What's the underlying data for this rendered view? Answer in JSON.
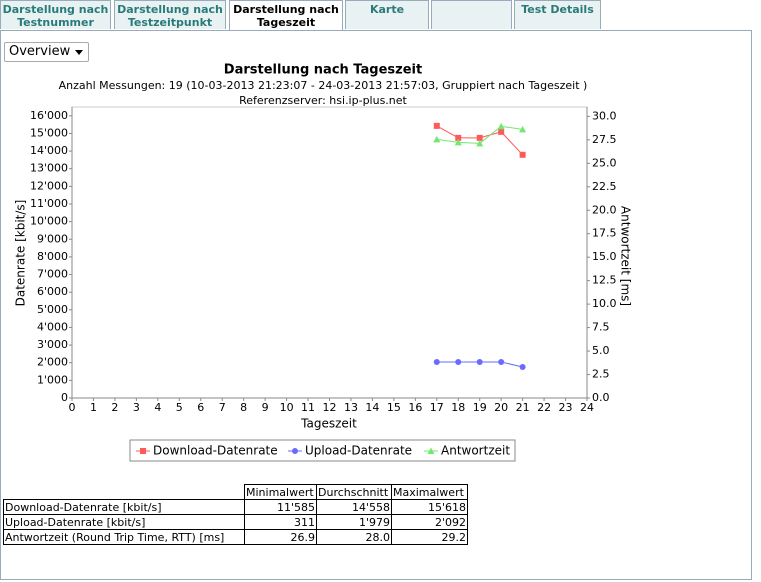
{
  "tabs": [
    [
      "Darstellung nach",
      "Testnummer"
    ],
    [
      "Darstellung nach",
      "Testzeitpunkt"
    ],
    [
      "Darstellung nach",
      "Tageszeit"
    ],
    [
      "Karte"
    ],
    [
      "Test Details"
    ]
  ],
  "active_tab": 2,
  "dropdown": "Overview",
  "chart_data": {
    "type": "line",
    "title": "Darstellung nach Tageszeit",
    "subtitle": "Anzahl Messungen: 19 (10-03-2013 21:23:07 - 24-03-2013 21:57:03, Gruppiert nach Tageszeit )",
    "subtitle2": "Referenzserver: hsi.ip-plus.net",
    "xlabel": "Tageszeit",
    "ylabel": "Datenrate [kbit/s]",
    "y2label": "Antwortzeit [ms]",
    "x": [
      17,
      18,
      19,
      20,
      21
    ],
    "series": [
      {
        "name": "Download-Datenrate",
        "color": "#ff5a5a",
        "marker": "square",
        "values": [
          15430,
          14750,
          14750,
          15090,
          13790
        ]
      },
      {
        "name": "Upload-Datenrate",
        "color": "#6a6aff",
        "marker": "circle",
        "values": [
          2043,
          2043,
          2043,
          2043,
          1759
        ]
      },
      {
        "name": "Antwortzeit",
        "color": "#72e872",
        "marker": "triangle",
        "axis": "y2",
        "values": [
          27.55,
          27.23,
          27.13,
          28.94,
          28.62
        ]
      }
    ],
    "xlim": [
      0,
      24
    ],
    "xticks": [
      0,
      1,
      2,
      3,
      4,
      5,
      6,
      7,
      8,
      9,
      10,
      11,
      12,
      13,
      14,
      15,
      16,
      17,
      18,
      19,
      20,
      21,
      22,
      23,
      24
    ],
    "ylim": [
      0,
      16500
    ],
    "yticks": [
      0,
      {
        "value": 1000,
        "label": "1'000"
      },
      {
        "value": 2000,
        "label": "2'000"
      },
      {
        "value": 3000,
        "label": "3'000"
      },
      {
        "value": 4000,
        "label": "4'000"
      },
      {
        "value": 5000,
        "label": "5'000"
      },
      {
        "value": 6000,
        "label": "6'000"
      },
      {
        "value": 7000,
        "label": "7'000"
      },
      {
        "value": 8000,
        "label": "8'000"
      },
      {
        "value": 9000,
        "label": "9'000"
      },
      {
        "value": 10000,
        "label": "10'000"
      },
      {
        "value": 11000,
        "label": "11'000"
      },
      {
        "value": 12000,
        "label": "12'000"
      },
      {
        "value": 13000,
        "label": "13'000"
      },
      {
        "value": 14000,
        "label": "14'000"
      },
      {
        "value": 15000,
        "label": "15'000"
      },
      {
        "value": 16000,
        "label": "16'000"
      }
    ],
    "y2lim": [
      0,
      31
    ],
    "y2ticks": [
      {
        "value": 0,
        "label": "0.0"
      },
      {
        "value": 2.5,
        "label": "2.5"
      },
      {
        "value": 5,
        "label": "5.0"
      },
      {
        "value": 7.5,
        "label": "7.5"
      },
      {
        "value": 10,
        "label": "10.0"
      },
      {
        "value": 12.5,
        "label": "12.5"
      },
      {
        "value": 15,
        "label": "15.0"
      },
      {
        "value": 17.5,
        "label": "17.5"
      },
      {
        "value": 20,
        "label": "20.0"
      },
      {
        "value": 22.5,
        "label": "22.5"
      },
      {
        "value": 25,
        "label": "25.0"
      },
      {
        "value": 27.5,
        "label": "27.5"
      },
      {
        "value": 30,
        "label": "30.0"
      }
    ],
    "grid": false
  },
  "table": {
    "header": [
      "Minimalwert",
      "Durchschnitt",
      "Maximalwert"
    ],
    "rows": [
      [
        "Download-Datenrate [kbit/s]",
        "11'585",
        "14'558",
        "15'618"
      ],
      [
        "Upload-Datenrate [kbit/s]",
        "311",
        "1'979",
        "2'092"
      ],
      [
        "Antwortzeit (Round Trip Time, RTT) [ms]",
        "26.9",
        "28.0",
        "29.2"
      ]
    ]
  }
}
